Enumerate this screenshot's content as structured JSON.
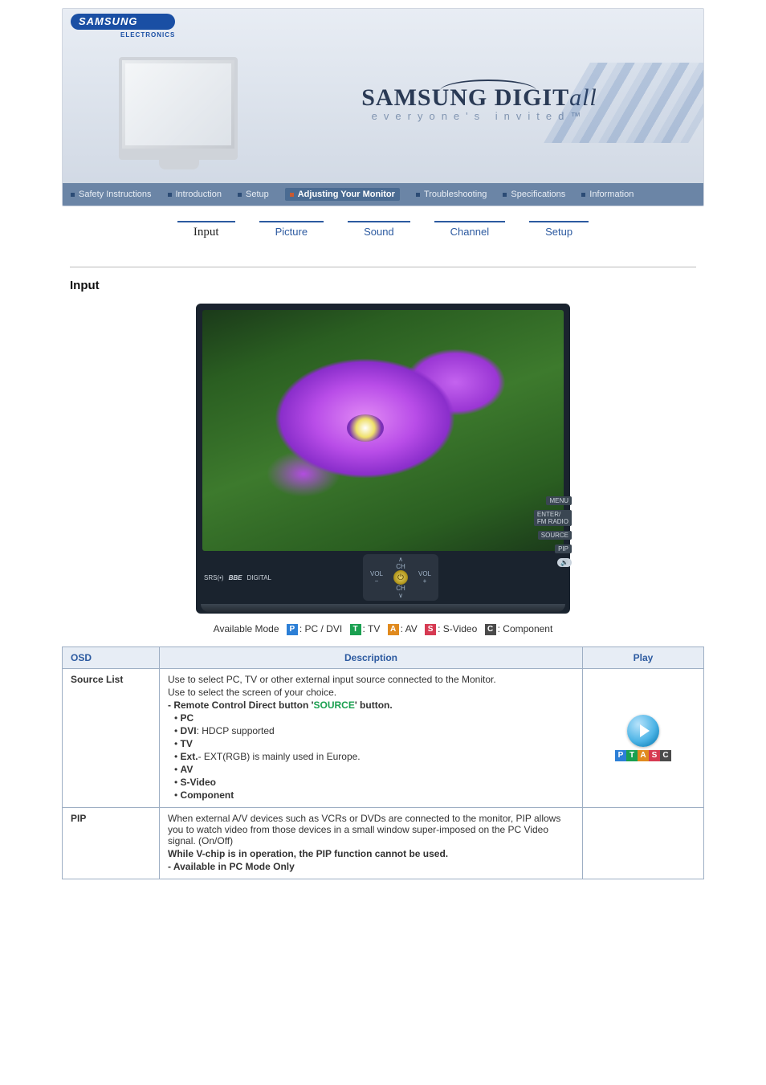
{
  "brand": {
    "logo_text": "SAMSUNG",
    "sub": "ELECTRONICS"
  },
  "tagline": {
    "main_a": "SAMSUNG DIGIT",
    "main_b": "all",
    "tm": "™",
    "sub": "everyone's invited",
    "sub_tm": "™"
  },
  "topnav": {
    "items": [
      {
        "label": "Safety Instructions"
      },
      {
        "label": "Introduction"
      },
      {
        "label": "Setup"
      },
      {
        "label": "Adjusting Your Monitor",
        "active": true
      },
      {
        "label": "Troubleshooting"
      },
      {
        "label": "Specifications"
      },
      {
        "label": "Information"
      }
    ]
  },
  "subtabs": {
    "items": [
      {
        "label": "Input",
        "active": true
      },
      {
        "label": "Picture"
      },
      {
        "label": "Sound"
      },
      {
        "label": "Channel"
      },
      {
        "label": "Setup"
      }
    ]
  },
  "section_title": "Input",
  "tv": {
    "logo_left_a": "SRS(•)",
    "logo_left_b": "BBE",
    "logo_left_c": "DIGITAL",
    "ch_up": "CH",
    "ch_dn": "CH",
    "vol_l": "VOL\n−",
    "vol_r": "VOL\n+",
    "power": "⏻",
    "side": [
      "MENU",
      "ENTER/\nFM RADIO",
      "SOURCE",
      "PIP",
      ""
    ]
  },
  "legend": {
    "prefix": "Available Mode",
    "items": [
      {
        "k": "P",
        "cls": "b-P",
        "v": ": PC / DVI"
      },
      {
        "k": "T",
        "cls": "b-T",
        "v": ": TV"
      },
      {
        "k": "A",
        "cls": "b-A",
        "v": ": AV"
      },
      {
        "k": "S",
        "cls": "b-S",
        "v": ": S-Video"
      },
      {
        "k": "C",
        "cls": "b-C",
        "v": ": Component"
      }
    ]
  },
  "table": {
    "headers": {
      "osd": "OSD",
      "desc": "Description",
      "play": "Play"
    },
    "rows": [
      {
        "osd": "Source List",
        "desc": {
          "p1": "Use to select PC, TV or other external input source connected to the Monitor.",
          "p2": "Use to select the screen of your choice.",
          "p3a": "- Remote Control Direct button '",
          "p3b": "SOURCE",
          "p3c": "' button.",
          "list": [
            "PC",
            "DVI: HDCP supported",
            "TV",
            "Ext.- EXT(RGB) is mainly used in Europe.",
            "AV",
            "S-Video",
            "Component"
          ],
          "bold_indices": [
            0,
            2,
            4,
            5,
            6
          ]
        },
        "play_badges": [
          "P",
          "T",
          "A",
          "S",
          "C"
        ]
      },
      {
        "osd": "PIP",
        "desc": {
          "p1": "When external A/V devices such as VCRs or DVDs are connected to the monitor, PIP allows you to watch video from those devices in a small window super-imposed on the PC Video signal. (On/Off)",
          "p2b": "While V-chip is in operation, the PIP function cannot be used.",
          "p3b": "- Available in PC Mode Only"
        }
      }
    ]
  }
}
